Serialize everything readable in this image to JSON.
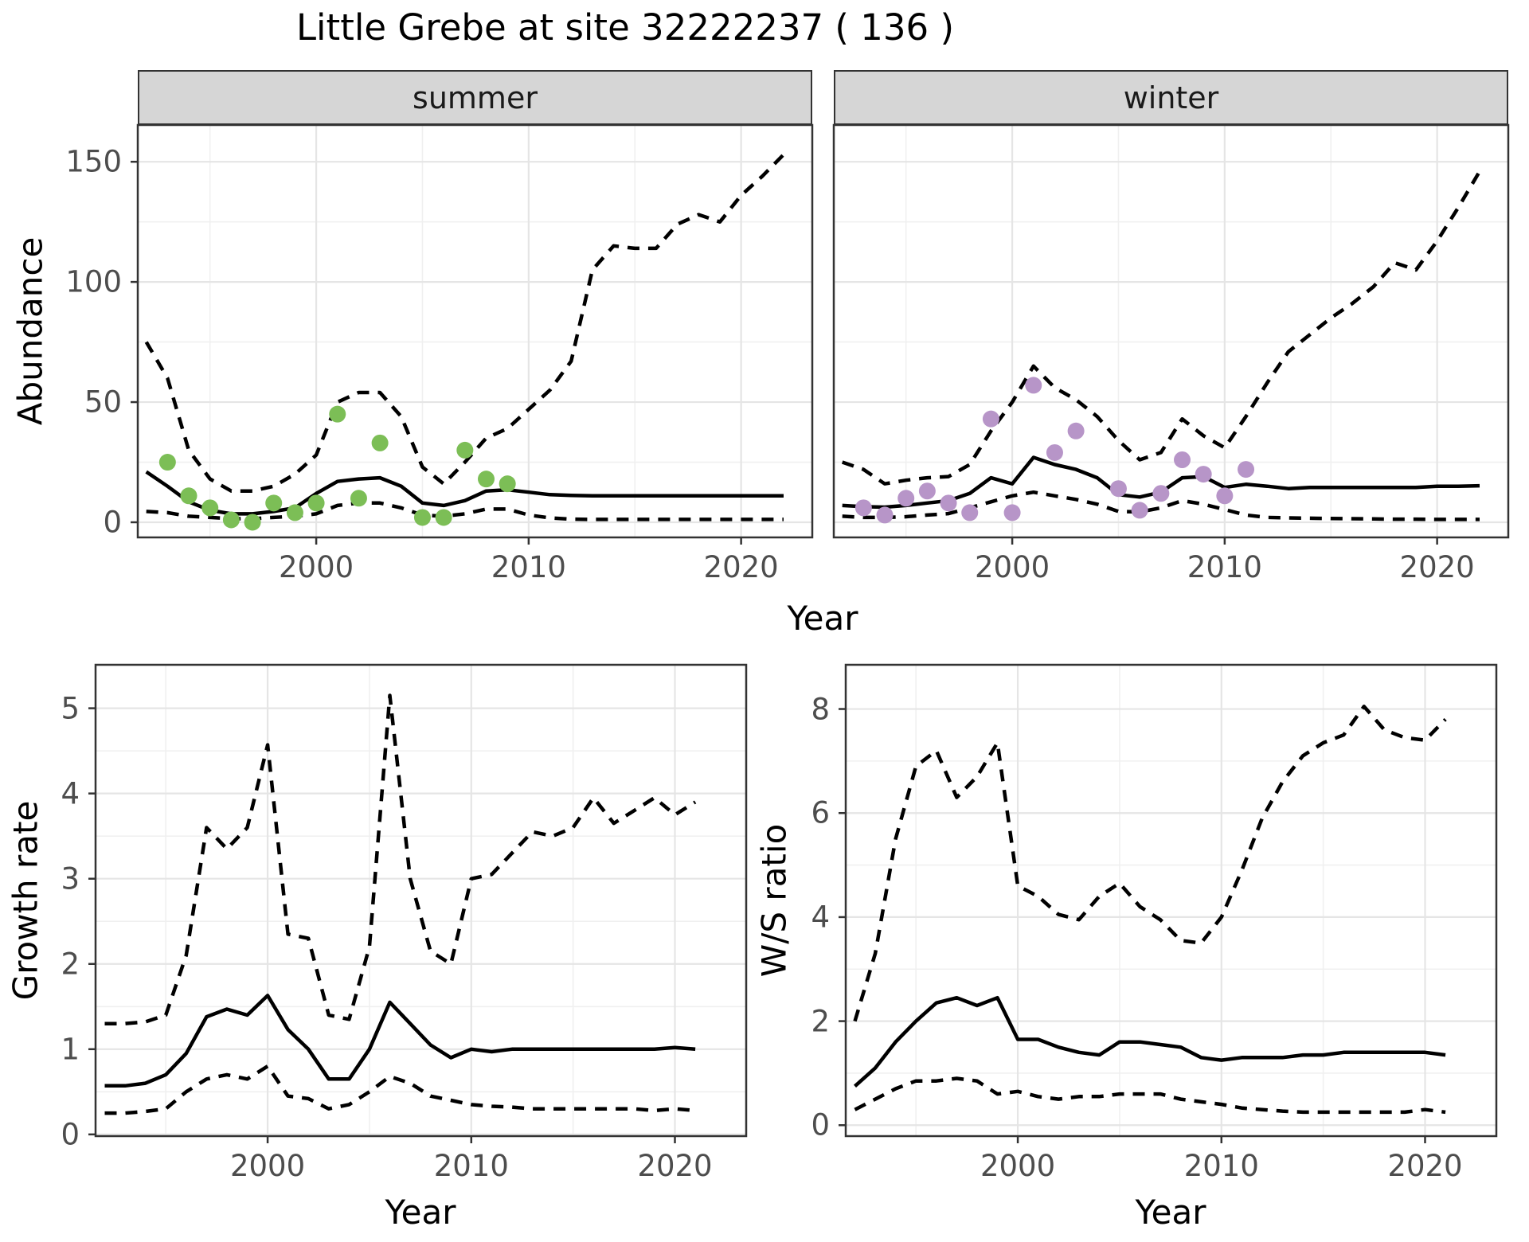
{
  "title": "Little Grebe at site 32222237 ( 136 )",
  "facets": {
    "summer": "summer",
    "winter": "winter"
  },
  "axis_labels": {
    "abundance": "Abundance",
    "year": "Year",
    "growth": "Growth rate",
    "ws": "W/S ratio"
  },
  "colors": {
    "summer_points": "#7CBE56",
    "winter_points": "#B795C8",
    "line": "#000000",
    "strip_bg": "#D6D6D6",
    "panel_border": "#333333",
    "grid_major": "#E5E5E5",
    "grid_minor": "#F0F0F0",
    "tick_text": "#4D4D4D"
  },
  "chart_data": [
    {
      "id": "abundance_summer",
      "type": "line",
      "title": "summer",
      "xlabel": "Year",
      "ylabel": "Abundance",
      "legend": "none",
      "grid": true,
      "xlim": [
        1991.6,
        2023.35
      ],
      "ylim": [
        -6.3,
        165.3
      ],
      "x_ticks": {
        "values": [
          2000,
          2010,
          2020
        ],
        "labels": [
          "2000",
          "2010",
          "2020"
        ]
      },
      "x_minor": [
        1995,
        2005,
        2015
      ],
      "y_ticks": {
        "values": [
          0,
          50,
          100,
          150
        ],
        "labels": [
          "0",
          "50",
          "100",
          "150"
        ]
      },
      "y_minor": [
        25,
        75,
        125
      ],
      "show_y_tick_labels": true,
      "series": {
        "years": [
          1992,
          1993,
          1994,
          1995,
          1996,
          1997,
          1998,
          1999,
          2000,
          2001,
          2002,
          2003,
          2004,
          2005,
          2006,
          2007,
          2008,
          2009,
          2010,
          2011,
          2012,
          2013,
          2014,
          2015,
          2016,
          2017,
          2018,
          2019,
          2020,
          2021,
          2022
        ],
        "mean": [
          21,
          15,
          8.5,
          5,
          3.5,
          3.5,
          4.5,
          6,
          12,
          17,
          18,
          18.5,
          15,
          8,
          7,
          9,
          13,
          13.5,
          12.5,
          11.5,
          11.2,
          11,
          11,
          11,
          11,
          11,
          11,
          11,
          11,
          11,
          11
        ],
        "upper": [
          75,
          60,
          30,
          18,
          13,
          13,
          15,
          20,
          28,
          50,
          54,
          54,
          44,
          23,
          16,
          25,
          35,
          39,
          47,
          55,
          67,
          105,
          115,
          114,
          114,
          124,
          128,
          125,
          136,
          144,
          153
        ],
        "lower": [
          4.5,
          4,
          2.5,
          2,
          1.5,
          1.5,
          2,
          2.5,
          3.5,
          7,
          8,
          8,
          6,
          3,
          2.5,
          3.5,
          5.5,
          5.5,
          3,
          1.8,
          1.3,
          1.2,
          1.2,
          1.2,
          1.2,
          1.2,
          1.2,
          1.2,
          1.2,
          1.2,
          1.2
        ]
      },
      "points": {
        "color": "#7CBE56",
        "data": [
          [
            1993,
            25
          ],
          [
            1994,
            11
          ],
          [
            1995,
            6
          ],
          [
            1996,
            1
          ],
          [
            1997,
            0
          ],
          [
            1998,
            8
          ],
          [
            1999,
            4
          ],
          [
            2000,
            8
          ],
          [
            2001,
            45
          ],
          [
            2002,
            10
          ],
          [
            2003,
            33
          ],
          [
            2005,
            2
          ],
          [
            2006,
            2
          ],
          [
            2007,
            30
          ],
          [
            2008,
            18
          ],
          [
            2009,
            16
          ]
        ]
      }
    },
    {
      "id": "abundance_winter",
      "type": "line",
      "title": "winter",
      "xlabel": "Year",
      "ylabel": "Abundance",
      "legend": "none",
      "grid": true,
      "xlim": [
        1991.6,
        2023.35
      ],
      "ylim": [
        -6.3,
        165.3
      ],
      "x_ticks": {
        "values": [
          2000,
          2010,
          2020
        ],
        "labels": [
          "2000",
          "2010",
          "2020"
        ]
      },
      "x_minor": [
        1995,
        2005,
        2015
      ],
      "y_ticks": {
        "values": [
          0,
          50,
          100,
          150
        ],
        "labels": [
          "0",
          "50",
          "100",
          "150"
        ]
      },
      "y_minor": [
        25,
        75,
        125
      ],
      "show_y_tick_labels": false,
      "series": {
        "years": [
          1992,
          1993,
          1994,
          1995,
          1996,
          1997,
          1998,
          1999,
          2000,
          2001,
          2002,
          2003,
          2004,
          2005,
          2006,
          2007,
          2008,
          2009,
          2010,
          2011,
          2012,
          2013,
          2014,
          2015,
          2016,
          2017,
          2018,
          2019,
          2020,
          2021,
          2022
        ],
        "mean": [
          7,
          6.5,
          6.3,
          7,
          8,
          9,
          12,
          18.5,
          16,
          27,
          24,
          22,
          18.5,
          11.5,
          10.5,
          12.5,
          18.5,
          19,
          14.5,
          15.8,
          15,
          14,
          14.5,
          14.5,
          14.5,
          14.5,
          14.5,
          14.5,
          15,
          15,
          15.2
        ],
        "upper": [
          25,
          22,
          16,
          17.5,
          18.5,
          19,
          24,
          38,
          50,
          65,
          56,
          51,
          44,
          34,
          26,
          29,
          43,
          36,
          31,
          44,
          58,
          71,
          78,
          85,
          91,
          98,
          108,
          105,
          117,
          131,
          146
        ],
        "lower": [
          2.5,
          2,
          2,
          2.3,
          3,
          3.6,
          6,
          8.5,
          11,
          12.5,
          11,
          9.5,
          7.5,
          4.5,
          4.3,
          6,
          9,
          7.5,
          5.3,
          3,
          2,
          1.8,
          1.7,
          1.6,
          1.5,
          1.4,
          1.3,
          1.3,
          1.2,
          1.2,
          1.2
        ]
      },
      "points": {
        "color": "#B795C8",
        "data": [
          [
            1993,
            6
          ],
          [
            1994,
            3
          ],
          [
            1995,
            10
          ],
          [
            1996,
            13
          ],
          [
            1997,
            8
          ],
          [
            1998,
            4
          ],
          [
            1999,
            43
          ],
          [
            2000,
            4
          ],
          [
            2001,
            57
          ],
          [
            2002,
            29
          ],
          [
            2003,
            38
          ],
          [
            2005,
            14
          ],
          [
            2006,
            5
          ],
          [
            2007,
            12
          ],
          [
            2008,
            26
          ],
          [
            2009,
            20
          ],
          [
            2010,
            11
          ],
          [
            2011,
            22
          ]
        ]
      }
    },
    {
      "id": "growth_rate",
      "type": "line",
      "title": "",
      "xlabel": "Year",
      "ylabel": "Growth rate",
      "legend": "none",
      "grid": true,
      "xlim": [
        1991.55,
        2023.5
      ],
      "ylim": [
        -0.02,
        5.51
      ],
      "x_ticks": {
        "values": [
          2000,
          2010,
          2020
        ],
        "labels": [
          "2000",
          "2010",
          "2020"
        ]
      },
      "x_minor": [
        1995,
        2005,
        2015
      ],
      "y_ticks": {
        "values": [
          0,
          1,
          2,
          3,
          4,
          5
        ],
        "labels": [
          "0",
          "1",
          "2",
          "3",
          "4",
          "5"
        ]
      },
      "y_minor": [
        0.5,
        1.5,
        2.5,
        3.5,
        4.5
      ],
      "show_y_tick_labels": true,
      "series": {
        "years": [
          1992,
          1993,
          1994,
          1995,
          1996,
          1997,
          1998,
          1999,
          2000,
          2001,
          2002,
          2003,
          2004,
          2005,
          2006,
          2007,
          2008,
          2009,
          2010,
          2011,
          2012,
          2013,
          2014,
          2015,
          2016,
          2017,
          2018,
          2019,
          2020,
          2021
        ],
        "mean": [
          0.57,
          0.57,
          0.6,
          0.7,
          0.95,
          1.38,
          1.47,
          1.4,
          1.63,
          1.23,
          1.0,
          0.65,
          0.65,
          1.0,
          1.55,
          1.3,
          1.05,
          0.9,
          1.0,
          0.97,
          1.0,
          1.0,
          1.0,
          1.0,
          1.0,
          1.0,
          1.0,
          1.0,
          1.02,
          1.0
        ],
        "upper": [
          1.3,
          1.3,
          1.32,
          1.4,
          2.1,
          3.6,
          3.35,
          3.6,
          4.57,
          2.35,
          2.3,
          1.4,
          1.35,
          2.2,
          5.15,
          3.0,
          2.15,
          2.0,
          3.0,
          3.05,
          3.3,
          3.55,
          3.5,
          3.6,
          3.95,
          3.65,
          3.8,
          3.95,
          3.75,
          3.9
        ],
        "lower": [
          0.25,
          0.25,
          0.27,
          0.3,
          0.5,
          0.65,
          0.7,
          0.65,
          0.8,
          0.45,
          0.42,
          0.3,
          0.35,
          0.5,
          0.68,
          0.6,
          0.45,
          0.4,
          0.35,
          0.33,
          0.32,
          0.3,
          0.3,
          0.3,
          0.3,
          0.3,
          0.3,
          0.28,
          0.3,
          0.28
        ]
      }
    },
    {
      "id": "ws_ratio",
      "type": "line",
      "title": "",
      "xlabel": "Year",
      "ylabel": "W/S ratio",
      "legend": "none",
      "grid": true,
      "xlim": [
        1991.55,
        2023.5
      ],
      "ylim": [
        -0.21,
        8.85
      ],
      "x_ticks": {
        "values": [
          2000,
          2010,
          2020
        ],
        "labels": [
          "2000",
          "2010",
          "2020"
        ]
      },
      "x_minor": [
        1995,
        2005,
        2015
      ],
      "y_ticks": {
        "values": [
          0,
          2,
          4,
          6,
          8
        ],
        "labels": [
          "0",
          "2",
          "4",
          "6",
          "8"
        ]
      },
      "y_minor": [
        1,
        3,
        5,
        7
      ],
      "show_y_tick_labels": true,
      "series": {
        "years": [
          1992,
          1993,
          1994,
          1995,
          1996,
          1997,
          1998,
          1999,
          2000,
          2001,
          2002,
          2003,
          2004,
          2005,
          2006,
          2007,
          2008,
          2009,
          2010,
          2011,
          2012,
          2013,
          2014,
          2015,
          2016,
          2017,
          2018,
          2019,
          2020,
          2021
        ],
        "mean": [
          0.75,
          1.1,
          1.6,
          2.0,
          2.35,
          2.45,
          2.3,
          2.45,
          1.65,
          1.65,
          1.5,
          1.4,
          1.35,
          1.6,
          1.6,
          1.55,
          1.5,
          1.3,
          1.25,
          1.3,
          1.3,
          1.3,
          1.35,
          1.35,
          1.4,
          1.4,
          1.4,
          1.4,
          1.4,
          1.35
        ],
        "upper": [
          2.0,
          3.3,
          5.5,
          6.9,
          7.2,
          6.3,
          6.7,
          7.35,
          4.6,
          4.4,
          4.05,
          3.95,
          4.4,
          4.65,
          4.2,
          3.95,
          3.55,
          3.5,
          4.0,
          4.9,
          5.9,
          6.6,
          7.1,
          7.35,
          7.5,
          8.05,
          7.6,
          7.45,
          7.4,
          7.8
        ],
        "lower": [
          0.3,
          0.5,
          0.7,
          0.85,
          0.85,
          0.9,
          0.85,
          0.6,
          0.65,
          0.55,
          0.5,
          0.55,
          0.55,
          0.6,
          0.6,
          0.6,
          0.5,
          0.45,
          0.4,
          0.33,
          0.3,
          0.27,
          0.25,
          0.25,
          0.25,
          0.25,
          0.25,
          0.25,
          0.3,
          0.25
        ]
      }
    }
  ]
}
